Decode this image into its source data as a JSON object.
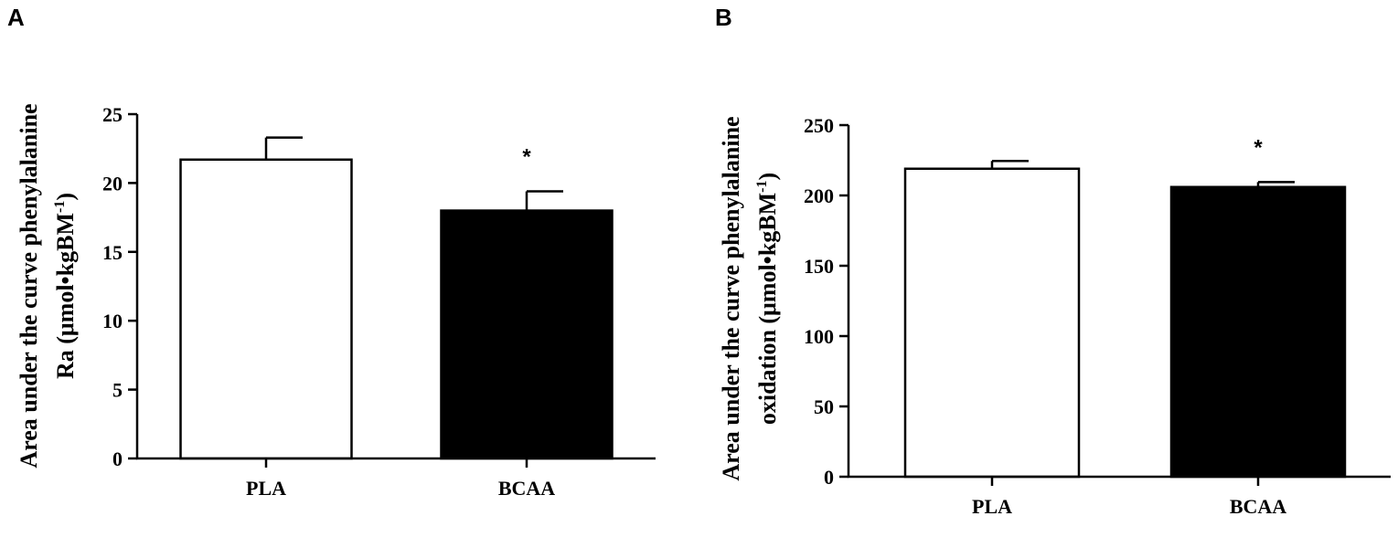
{
  "chart_data": [
    {
      "type": "bar",
      "panel": "A",
      "ylabel_line1": "Area under the curve phenylalanine",
      "ylabel_line2_prefix": "Ra (μmol•kgBM",
      "ylabel_line2_sup": "-1",
      "ylabel_line2_suffix": ")",
      "ylim": [
        0,
        25
      ],
      "yticks": [
        0,
        5,
        10,
        15,
        20,
        25
      ],
      "categories": [
        "PLA",
        "BCAA"
      ],
      "values": [
        21.7,
        18.0
      ],
      "errors": [
        1.6,
        1.4
      ],
      "bar_colors": [
        "#ffffff",
        "#000000"
      ],
      "significance": [
        "",
        "*"
      ]
    },
    {
      "type": "bar",
      "panel": "B",
      "ylabel_line1": "Area under the curve phenylalanine",
      "ylabel_line2_prefix": "oxidation (μmol•kgBM",
      "ylabel_line2_sup": "-1",
      "ylabel_line2_suffix": ")",
      "ylim": [
        0,
        250
      ],
      "yticks": [
        0,
        50,
        100,
        150,
        200,
        250
      ],
      "categories": [
        "PLA",
        "BCAA"
      ],
      "values": [
        219,
        206
      ],
      "errors": [
        5.5,
        3.5
      ],
      "bar_colors": [
        "#ffffff",
        "#000000"
      ],
      "significance": [
        "",
        "*"
      ]
    }
  ]
}
